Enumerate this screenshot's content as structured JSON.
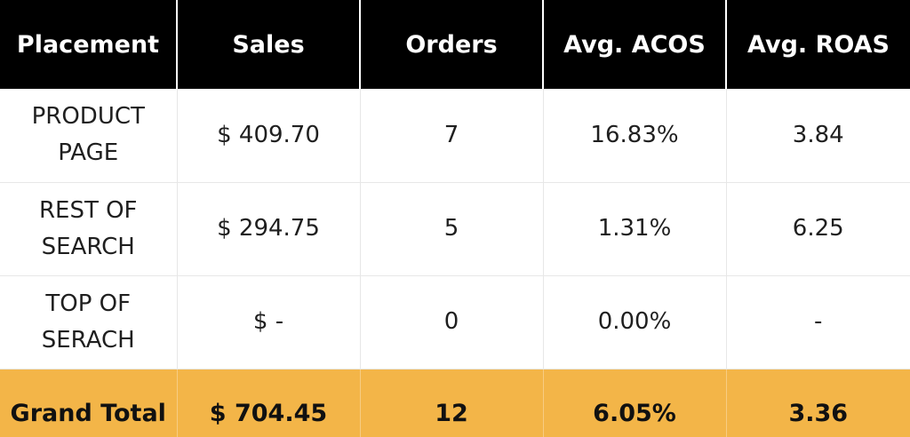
{
  "headers": [
    "Placement",
    "Sales",
    "Orders",
    "Avg. ACOS",
    "Avg. ROAS"
  ],
  "rows": [
    {
      "placement": [
        "PRODUCT",
        "PAGE"
      ],
      "sales": "$ 409.70",
      "orders": "7",
      "acos": "16.83%",
      "roas": "3.84"
    },
    {
      "placement": [
        "REST OF",
        "SEARCH"
      ],
      "sales": "$ 294.75",
      "orders": "5",
      "acos": "1.31%",
      "roas": "6.25"
    },
    {
      "placement": [
        "TOP OF",
        "SERACH"
      ],
      "sales": "$ -",
      "orders": "0",
      "acos": "0.00%",
      "roas": "-"
    }
  ],
  "total": {
    "label": "Grand Total",
    "sales": "$ 704.45",
    "orders": "12",
    "acos": "6.05%",
    "roas": "3.36"
  },
  "colors": {
    "header_bg": "#000000",
    "header_text": "#ffffff",
    "total_bg": "#f3b548",
    "body_text": "#1f1f1f"
  }
}
